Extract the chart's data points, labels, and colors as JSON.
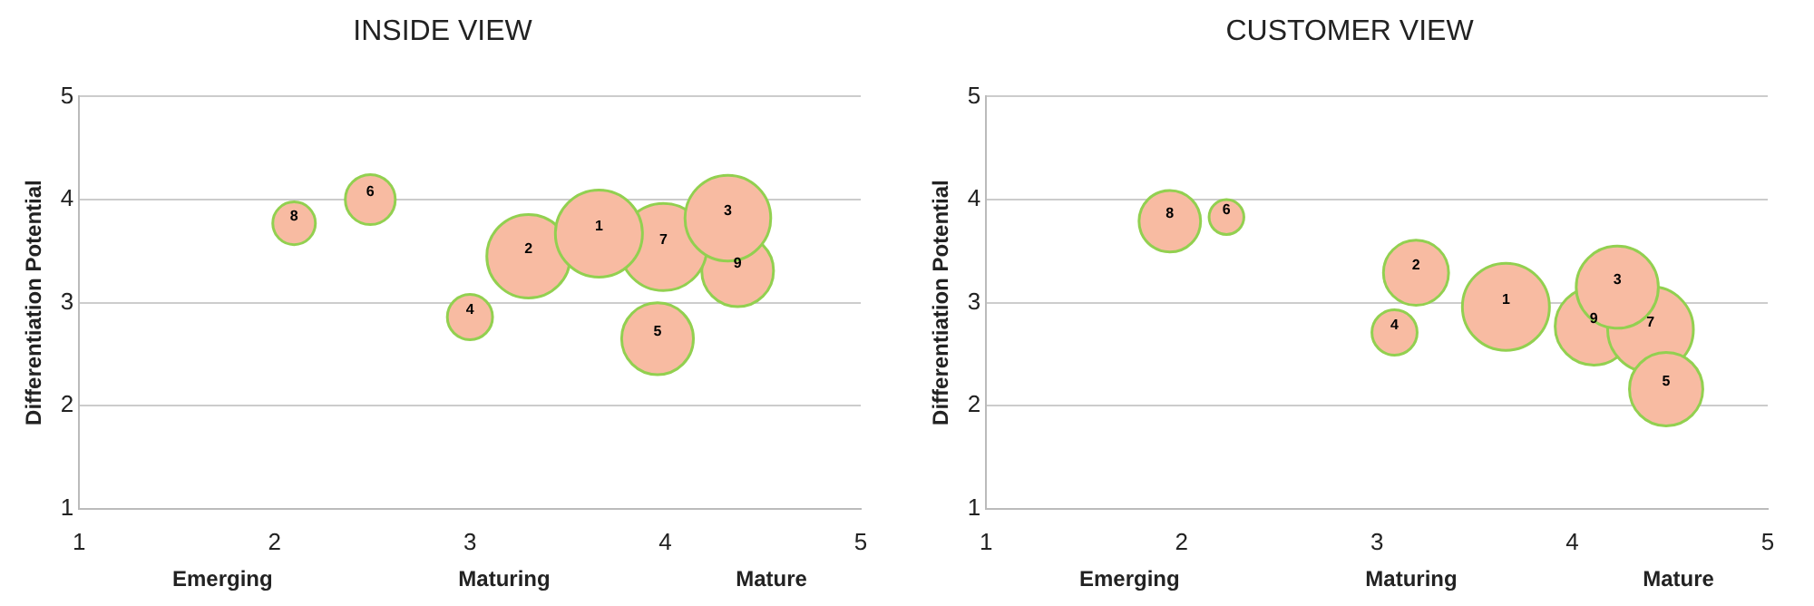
{
  "chart_data": [
    {
      "type": "bubble",
      "title": "INSIDE VIEW",
      "ylabel": "Differentiation Potential",
      "xlim": [
        1,
        5
      ],
      "xticks": [
        1,
        2,
        3,
        4,
        5
      ],
      "ylim": [
        1,
        5
      ],
      "yticks": [
        1,
        2,
        3,
        4,
        5
      ],
      "grid": "y",
      "legend": false,
      "annotations": [
        "Emerging",
        "Maturing",
        "Mature"
      ],
      "series": [
        {
          "name": "1",
          "color": "#f8bba2",
          "x": [
            3.66
          ],
          "values": [
            3.67
          ],
          "sizes": [
            1
          ]
        },
        {
          "name": "2",
          "color": "#f8bba2",
          "x": [
            3.3
          ],
          "values": [
            3.45
          ],
          "sizes": [
            0.92
          ]
        },
        {
          "name": "3",
          "color": "#f8bba2",
          "x": [
            4.32
          ],
          "values": [
            3.82
          ],
          "sizes": [
            0.97
          ]
        },
        {
          "name": "4",
          "color": "#f8bba2",
          "x": [
            3.0
          ],
          "values": [
            2.86
          ],
          "sizes": [
            0.27
          ]
        },
        {
          "name": "5",
          "color": "#f8bba2",
          "x": [
            3.96
          ],
          "values": [
            2.65
          ],
          "sizes": [
            0.68
          ]
        },
        {
          "name": "6",
          "color": "#f8bba2",
          "x": [
            2.49
          ],
          "values": [
            4.0
          ],
          "sizes": [
            0.33
          ]
        },
        {
          "name": "7",
          "color": "#f8bba2",
          "x": [
            3.99
          ],
          "values": [
            3.54
          ],
          "sizes": [
            1
          ]
        },
        {
          "name": "8",
          "color": "#f8bba2",
          "x": [
            2.1
          ],
          "values": [
            3.77
          ],
          "sizes": [
            0.24
          ]
        },
        {
          "name": "9",
          "color": "#f8bba2",
          "x": [
            4.37
          ],
          "values": [
            3.31
          ],
          "sizes": [
            0.68
          ]
        }
      ]
    },
    {
      "type": "bubble",
      "title": "CUSTOMER VIEW",
      "ylabel": "Differentiation Potential",
      "xlim": [
        1,
        5
      ],
      "xticks": [
        1,
        2,
        3,
        4,
        5
      ],
      "ylim": [
        1,
        5
      ],
      "yticks": [
        1,
        2,
        3,
        4,
        5
      ],
      "grid": "y",
      "legend": false,
      "annotations": [
        "Emerging",
        "Maturing",
        "Mature"
      ],
      "series": [
        {
          "name": "1",
          "color": "#f8bba2",
          "x": [
            3.66
          ],
          "values": [
            2.96
          ],
          "sizes": [
            1
          ]
        },
        {
          "name": "2",
          "color": "#f8bba2",
          "x": [
            3.2
          ],
          "values": [
            3.29
          ],
          "sizes": [
            0.56
          ]
        },
        {
          "name": "3",
          "color": "#f8bba2",
          "x": [
            4.23
          ],
          "values": [
            3.15
          ],
          "sizes": [
            0.89
          ]
        },
        {
          "name": "4",
          "color": "#f8bba2",
          "x": [
            3.09
          ],
          "values": [
            2.71
          ],
          "sizes": [
            0.27
          ]
        },
        {
          "name": "5",
          "color": "#f8bba2",
          "x": [
            4.48
          ],
          "values": [
            2.16
          ],
          "sizes": [
            0.71
          ]
        },
        {
          "name": "6",
          "color": "#f8bba2",
          "x": [
            2.23
          ],
          "values": [
            3.83
          ],
          "sizes": [
            0.16
          ]
        },
        {
          "name": "7",
          "color": "#f8bba2",
          "x": [
            4.4
          ],
          "values": [
            2.74
          ],
          "sizes": [
            0.97
          ]
        },
        {
          "name": "8",
          "color": "#f8bba2",
          "x": [
            1.94
          ],
          "values": [
            3.79
          ],
          "sizes": [
            0.5
          ]
        },
        {
          "name": "9",
          "color": "#f8bba2",
          "x": [
            4.11
          ],
          "values": [
            2.77
          ],
          "sizes": [
            0.79
          ]
        }
      ]
    }
  ]
}
